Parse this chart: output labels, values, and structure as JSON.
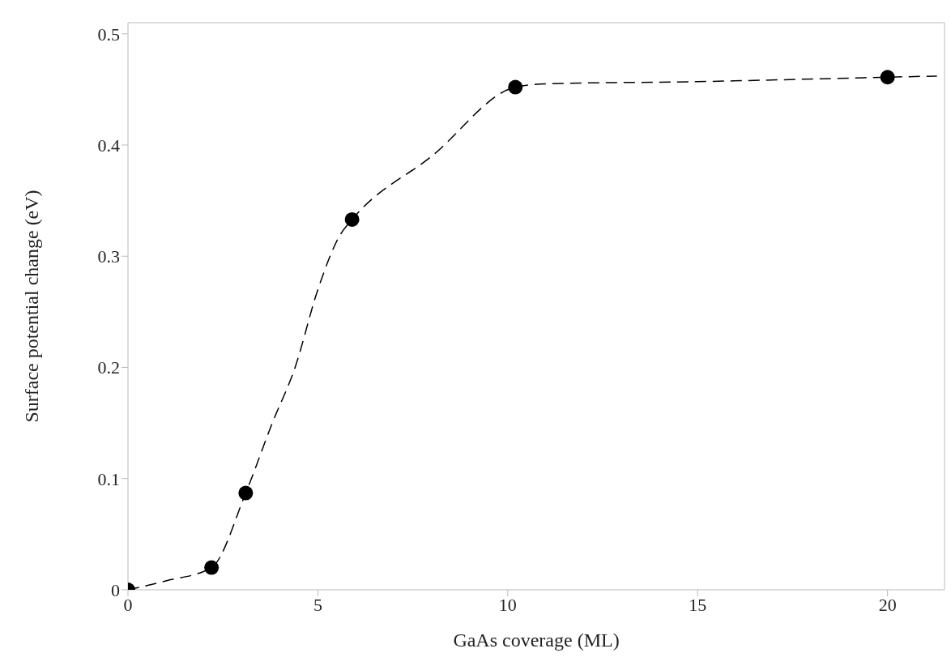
{
  "chart_data": {
    "type": "scatter",
    "xlabel": "GaAs coverage (ML)",
    "ylabel": "Surface potential change (eV)",
    "xlim": [
      0,
      21.5
    ],
    "ylim": [
      0,
      0.51
    ],
    "xticks": [
      0,
      5,
      10,
      15,
      20
    ],
    "yticks": [
      0,
      0.1,
      0.2,
      0.3,
      0.4,
      0.5
    ],
    "grid": false,
    "legend": false,
    "series": [
      {
        "color": "#000000",
        "marker": "circle",
        "x": [
          0,
          2.2,
          3.1,
          5.9,
          10.2,
          20
        ],
        "values": [
          0,
          0.02,
          0.087,
          0.333,
          0.452,
          0.461
        ]
      },
      {
        "type": "line",
        "color": "#000000",
        "marker": "none",
        "line_style": "dashed",
        "x": [
          0,
          1,
          2.2,
          3.1,
          3.8,
          4.4,
          5.0,
          5.6,
          5.9,
          8,
          10.2,
          11,
          15,
          20,
          21.3
        ],
        "values": [
          0,
          0.008,
          0.02,
          0.087,
          0.15,
          0.2,
          0.27,
          0.32,
          0.333,
          0.39,
          0.452,
          0.455,
          0.457,
          0.461,
          0.462
        ]
      }
    ]
  }
}
